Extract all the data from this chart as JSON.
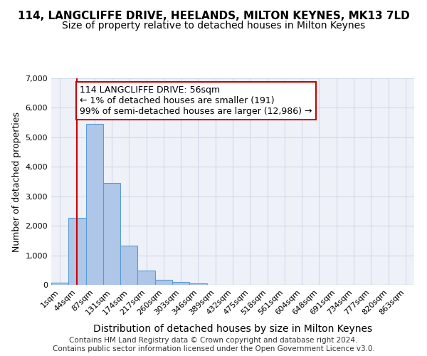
{
  "title": "114, LANGCLIFFE DRIVE, HEELANDS, MILTON KEYNES, MK13 7LD",
  "subtitle": "Size of property relative to detached houses in Milton Keynes",
  "xlabel": "Distribution of detached houses by size in Milton Keynes",
  "ylabel": "Number of detached properties",
  "bin_labels": [
    "1sqm",
    "44sqm",
    "87sqm",
    "131sqm",
    "174sqm",
    "217sqm",
    "260sqm",
    "303sqm",
    "346sqm",
    "389sqm",
    "432sqm",
    "475sqm",
    "518sqm",
    "561sqm",
    "604sqm",
    "648sqm",
    "691sqm",
    "734sqm",
    "777sqm",
    "820sqm",
    "863sqm"
  ],
  "bar_values": [
    80,
    2280,
    5450,
    3450,
    1320,
    480,
    170,
    100,
    55,
    0,
    0,
    0,
    0,
    0,
    0,
    0,
    0,
    0,
    0,
    0,
    0
  ],
  "bar_color": "#aec6e8",
  "bar_edge_color": "#5b9bd5",
  "grid_color": "#d0d8e8",
  "background_color": "#eef2f8",
  "vline_x": 1.0,
  "vline_color": "#cc0000",
  "annotation_text": "114 LANGCLIFFE DRIVE: 56sqm\n← 1% of detached houses are smaller (191)\n99% of semi-detached houses are larger (12,986) →",
  "annotation_box_color": "#ffffff",
  "annotation_box_edge": "#cc0000",
  "ylim": [
    0,
    7000
  ],
  "yticks": [
    0,
    1000,
    2000,
    3000,
    4000,
    5000,
    6000,
    7000
  ],
  "footer_text": "Contains HM Land Registry data © Crown copyright and database right 2024.\nContains public sector information licensed under the Open Government Licence v3.0.",
  "title_fontsize": 11,
  "subtitle_fontsize": 10,
  "xlabel_fontsize": 10,
  "ylabel_fontsize": 9,
  "tick_fontsize": 8,
  "annotation_fontsize": 9,
  "footer_fontsize": 7.5
}
